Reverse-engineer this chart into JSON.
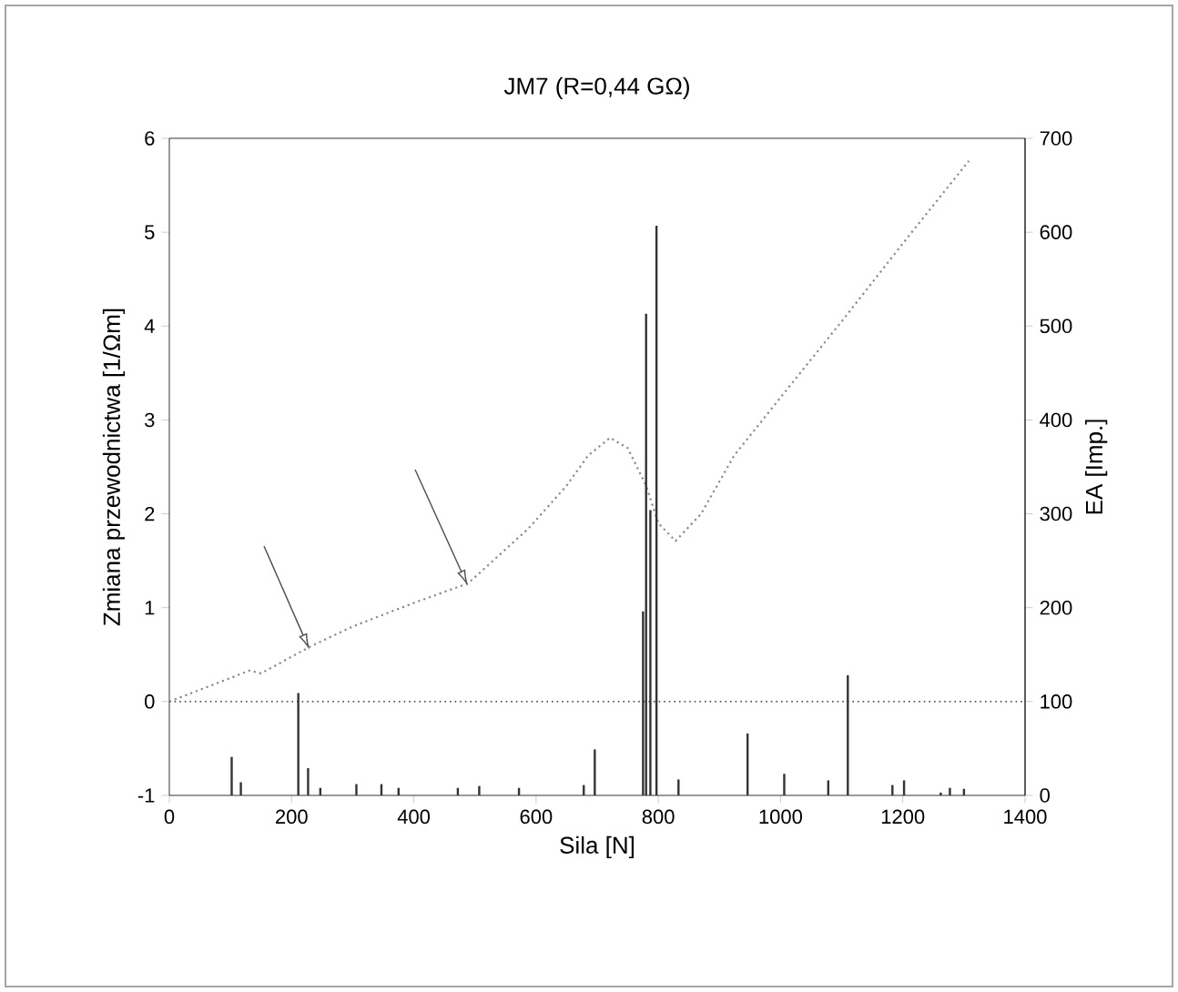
{
  "chart_data": {
    "type": "line",
    "title": "JM7 (R=0,44 GΩ)",
    "xlabel": "Sila [N]",
    "ylabel": "Zmiana przewodnictwa [1/Ωm]",
    "y2label": "EA [Imp.]",
    "xlim": [
      0,
      1400
    ],
    "xticks": [
      0,
      200,
      400,
      600,
      800,
      1000,
      1200,
      1400
    ],
    "ylim": [
      -1,
      6
    ],
    "yticks": [
      -1,
      0,
      1,
      2,
      3,
      4,
      5,
      6
    ],
    "y2lim": [
      0,
      700
    ],
    "y2ticks": [
      0,
      100,
      200,
      300,
      400,
      500,
      600,
      700
    ],
    "ref_lines": [
      {
        "axis": "y",
        "value": 0,
        "line_style": "dotted",
        "color": "#555555"
      }
    ],
    "series": [
      {
        "axis": "y",
        "color": "#8a8a8a",
        "line_style": "dotted",
        "x": [
          0,
          60,
          100,
          131,
          150,
          229,
          300,
          400,
          489,
          587,
          650,
          685,
          721,
          750,
          780,
          800,
          828,
          870,
          924,
          1000,
          1100,
          1200,
          1308
        ],
        "values": [
          0,
          0.15,
          0.25,
          0.33,
          0.3,
          0.58,
          0.8,
          1.05,
          1.26,
          1.84,
          2.3,
          2.62,
          2.81,
          2.7,
          2.3,
          1.9,
          1.71,
          2.0,
          2.62,
          3.24,
          4.05,
          4.88,
          5.76
        ]
      },
      {
        "type": "bar",
        "axis": "y2",
        "color": "#333333",
        "x": [
          102,
          117,
          211,
          227,
          247,
          306,
          347,
          375,
          472,
          507,
          572,
          678,
          696,
          775,
          780,
          787,
          797,
          833,
          946,
          1006,
          1078,
          1110,
          1183,
          1202,
          1262,
          1277,
          1300
        ],
        "values": [
          41,
          14,
          109,
          29,
          8,
          12,
          12,
          8,
          8,
          10,
          8,
          11,
          49,
          196,
          513,
          304,
          607,
          17,
          66,
          23,
          16,
          128,
          11,
          16,
          3,
          8,
          7
        ]
      }
    ]
  }
}
